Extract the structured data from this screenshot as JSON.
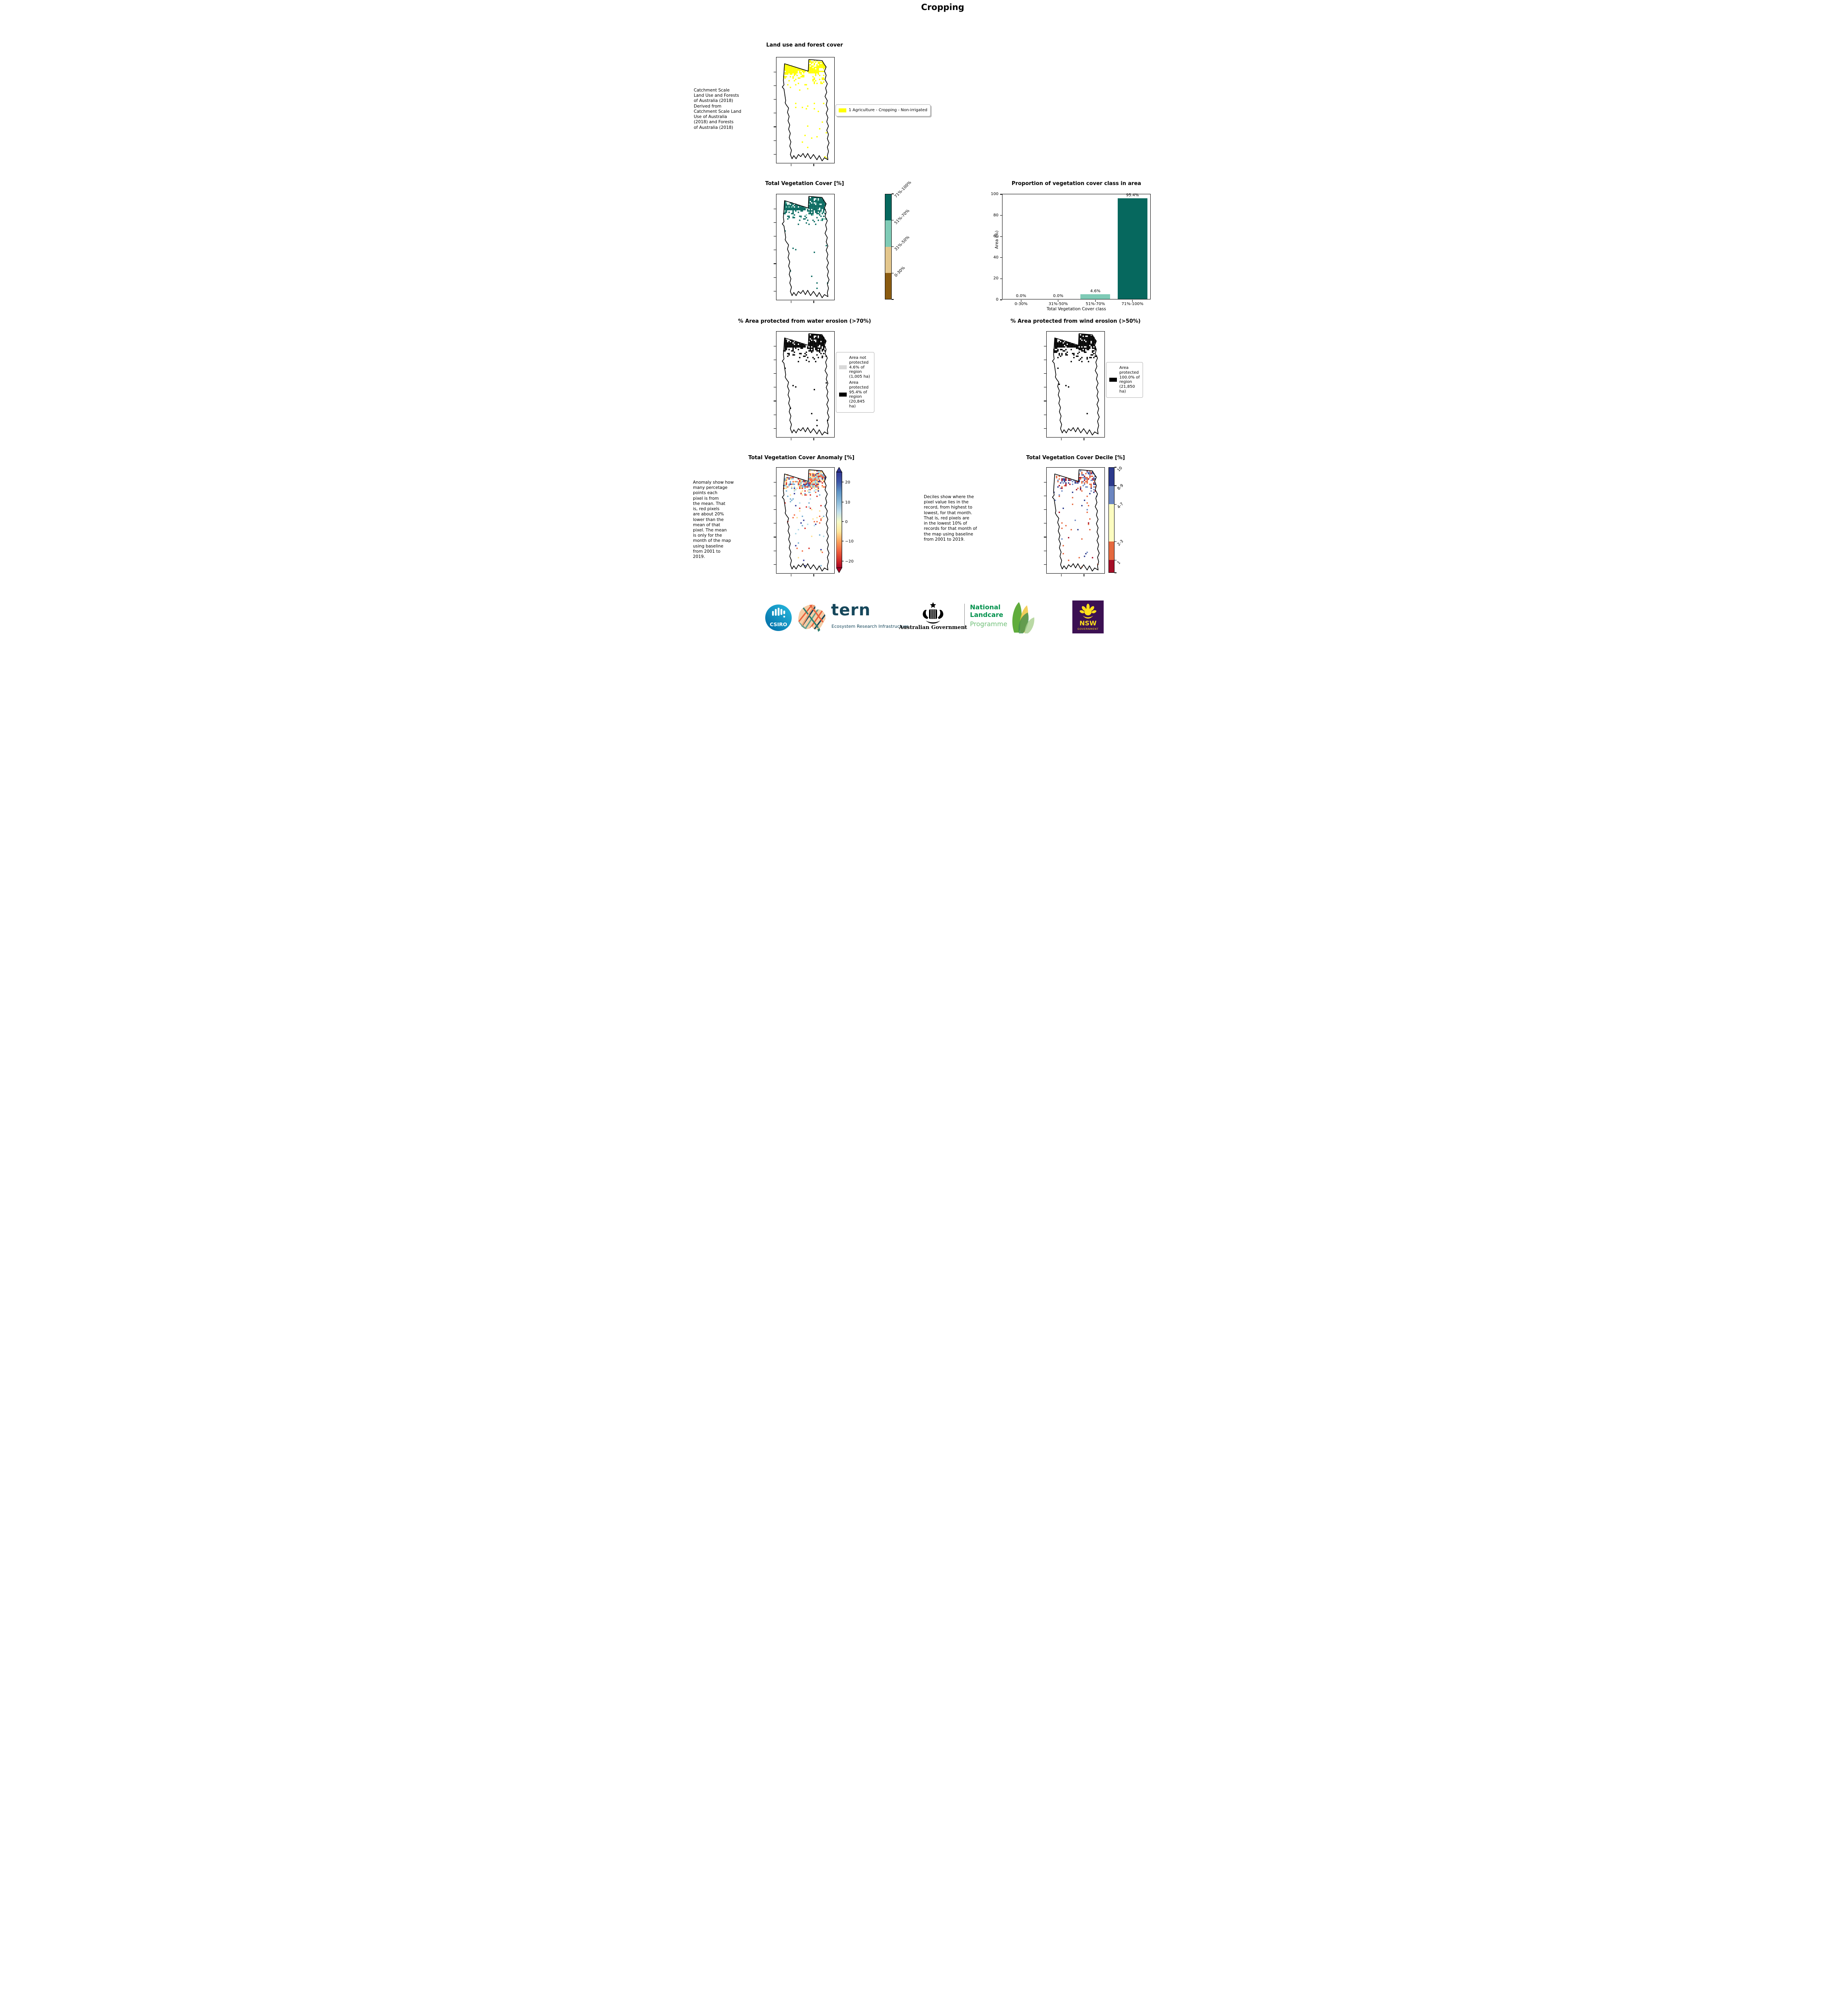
{
  "page": {
    "title": "Cropping"
  },
  "panels": {
    "landuse": {
      "title": "Land use and forest cover",
      "side_text": " Catchment Scale\nLand Use and Forests\nof Australia (2018)\nDerived from\nCatchment Scale Land\nUse of Australia\n(2018) and Forests\nof Australia (2018)",
      "legend": {
        "label": "1 Agriculture - Cropping - Non-irrigated",
        "swatch_color": "#FFFF00"
      }
    },
    "vegcover": {
      "title": "Total Vegetation Cover [%]",
      "colorbar": {
        "labels": [
          "71%-100%",
          "51%-70%",
          "31%-50%",
          "0-30%"
        ],
        "colors": [
          "#06685E",
          "#7FCBB6",
          "#E3C68C",
          "#8A5B11"
        ]
      }
    },
    "water": {
      "title": "% Area protected from water erosion (>70%)",
      "legend": [
        {
          "swatch_color": "#D8D8D8",
          "label": "Area not\nprotected\n4.6% of\nregion\n(1,005 ha)"
        },
        {
          "swatch_color": "#000000",
          "label": "Area\nprotected\n95.4% of\nregion\n(20,845\nha)"
        }
      ]
    },
    "wind": {
      "title": "% Area protected from wind erosion (>50%)",
      "legend": [
        {
          "swatch_color": "#000000",
          "label": "Area\nprotected\n100.0% of\nregion\n(21,850\nha)"
        }
      ]
    },
    "anomaly": {
      "title": "Total Vegetation Cover Anomaly [%]",
      "side_text": "Anomaly show how\nmany percetage\npoints each\npixel is from\nthe mean. That\nis, red pixels\nare about 20%\nlower than the\nmean of that\npixel. The mean\nis only for the\nmonth of the map\nusing baseline\nfrom 2001 to\n2019.",
      "colorbar": {
        "ticks": [
          "20",
          "10",
          "0",
          "−10",
          "−20"
        ],
        "gradient": [
          [
            "0",
            "#313695"
          ],
          [
            "0.104",
            "#3D57A7"
          ],
          [
            "0.207",
            "#5E94C6"
          ],
          [
            "0.313",
            "#8CBBDA"
          ],
          [
            "0.415",
            "#C2E0ED"
          ],
          [
            "0.516",
            "#F6FBC9"
          ],
          [
            "0.62",
            "#FEE79C"
          ],
          [
            "0.72",
            "#FCA65E"
          ],
          [
            "0.825",
            "#F1623F"
          ],
          [
            "0.929",
            "#CE2827"
          ],
          [
            "1",
            "#A50026"
          ]
        ]
      }
    },
    "decile": {
      "title": "Total Vegetation Cover Decile [%]",
      "side_text": "Deciles show where the\npixel value lies in the\nrecord, from highest to\nlowest, for that month.\nThat is, red pixels are\nin the lowest 10% of\nrecords for that month of\nthe map using baseline\nfrom 2001 to 2019.",
      "colorbar": {
        "labels": [
          "10",
          "8-9",
          "4-7",
          "2-3",
          "1"
        ],
        "colors": [
          "#2C3A8C",
          "#6C86C1",
          "#FCFCC0",
          "#E5693F",
          "#A50F27"
        ],
        "heights_pct": [
          17.5,
          17.5,
          35.5,
          17.5,
          12
        ]
      }
    }
  },
  "chart_data": {
    "type": "bar",
    "title": "Proportion of vegetation cover class in area",
    "categories": [
      "0-30%",
      "31%-50%",
      "51%-70%",
      "71%-100%"
    ],
    "values": [
      0.0,
      0.0,
      4.6,
      95.4
    ],
    "bar_labels": [
      "0.0%",
      "0.0%",
      "4.6%",
      "95.4%"
    ],
    "bar_colors": [
      "#06685E",
      "#06685E",
      "#7FCBB6",
      "#06685E"
    ],
    "xlabel": "Total Vegetation Cover class",
    "ylabel": "Area (%)",
    "ylim": [
      0,
      100
    ],
    "yticks": [
      0,
      20,
      40,
      60,
      80,
      100
    ],
    "legend_position": "none",
    "grid": false
  },
  "map_outline": [
    [
      14,
      6
    ],
    [
      55,
      13
    ],
    [
      56,
      2
    ],
    [
      79,
      3
    ],
    [
      82,
      6
    ],
    [
      86,
      9
    ],
    [
      83,
      13
    ],
    [
      86,
      17
    ],
    [
      84,
      21
    ],
    [
      88,
      25
    ],
    [
      85,
      29
    ],
    [
      87,
      33
    ],
    [
      84,
      37
    ],
    [
      88,
      41
    ],
    [
      86,
      45
    ],
    [
      89,
      49
    ],
    [
      86,
      53
    ],
    [
      89,
      57
    ],
    [
      87,
      61
    ],
    [
      90,
      65
    ],
    [
      87,
      69
    ],
    [
      90,
      73
    ],
    [
      88,
      77
    ],
    [
      91,
      81
    ],
    [
      88,
      85
    ],
    [
      90,
      89
    ],
    [
      88,
      93
    ],
    [
      89,
      97
    ],
    [
      83,
      95
    ],
    [
      79,
      98
    ],
    [
      74,
      93
    ],
    [
      70,
      97
    ],
    [
      64,
      92
    ],
    [
      59,
      96
    ],
    [
      54,
      91
    ],
    [
      50,
      95
    ],
    [
      46,
      91
    ],
    [
      42,
      94
    ],
    [
      38,
      92
    ],
    [
      34,
      96
    ],
    [
      30,
      93
    ],
    [
      27,
      96
    ],
    [
      24,
      92
    ],
    [
      26,
      88
    ],
    [
      23,
      84
    ],
    [
      25,
      80
    ],
    [
      22,
      76
    ],
    [
      24,
      72
    ],
    [
      21,
      68
    ],
    [
      23,
      64
    ],
    [
      20,
      60
    ],
    [
      22,
      56
    ],
    [
      19,
      52
    ],
    [
      21,
      48
    ],
    [
      17,
      45
    ],
    [
      15,
      43
    ],
    [
      16,
      41
    ],
    [
      13,
      30
    ],
    [
      10,
      28
    ],
    [
      13,
      26
    ],
    [
      12,
      22
    ]
  ],
  "maps": [
    {
      "id": "map-landuse-canvas",
      "seed": 99,
      "density": 1.0,
      "sparse": 0.016,
      "palette": [
        [
          "#FFFF00",
          1
        ]
      ]
    },
    {
      "id": "map-vegcover-canvas",
      "seed": 1234,
      "density": 1.0,
      "sparse": 0.016,
      "palette": [
        [
          "#06685E",
          0.88
        ],
        [
          "#7FCBB6",
          0.12
        ]
      ]
    },
    {
      "id": "map-water-canvas",
      "seed": 1234,
      "density": 1.0,
      "sparse": 0.016,
      "palette": [
        [
          "#000000",
          0.92
        ],
        [
          "#D8D8D8",
          0.08
        ]
      ]
    },
    {
      "id": "map-wind-canvas",
      "seed": 1234,
      "density": 0.9,
      "sparse": 0.012,
      "palette": [
        [
          "#000000",
          1
        ]
      ]
    },
    {
      "id": "map-anomaly-canvas",
      "seed": 7,
      "density": 1.15,
      "sparse": 0.035,
      "palette": [
        [
          "#313695",
          0.08
        ],
        [
          "#74ADD1",
          0.2
        ],
        [
          "#ABD9E9",
          0.16
        ],
        [
          "#FEE090",
          0.24
        ],
        [
          "#F46D43",
          0.2
        ],
        [
          "#D73027",
          0.12
        ]
      ]
    },
    {
      "id": "map-decile-canvas",
      "seed": 13,
      "density": 0.5,
      "sparse": 0.02,
      "palette": [
        [
          "#2C3A8C",
          0.26
        ],
        [
          "#6C86C1",
          0.22
        ],
        [
          "#E5693F",
          0.32
        ],
        [
          "#A50F27",
          0.2
        ]
      ]
    }
  ],
  "footer": {
    "csiro": "CSIRO",
    "tern": "tern",
    "tern_sub": "Ecosystem Research Infrastructure",
    "gov": "Australian Government",
    "landcare": [
      "National",
      "Landcare",
      "Programme"
    ],
    "nsw": [
      "NSW",
      "GOVERNMENT"
    ]
  }
}
